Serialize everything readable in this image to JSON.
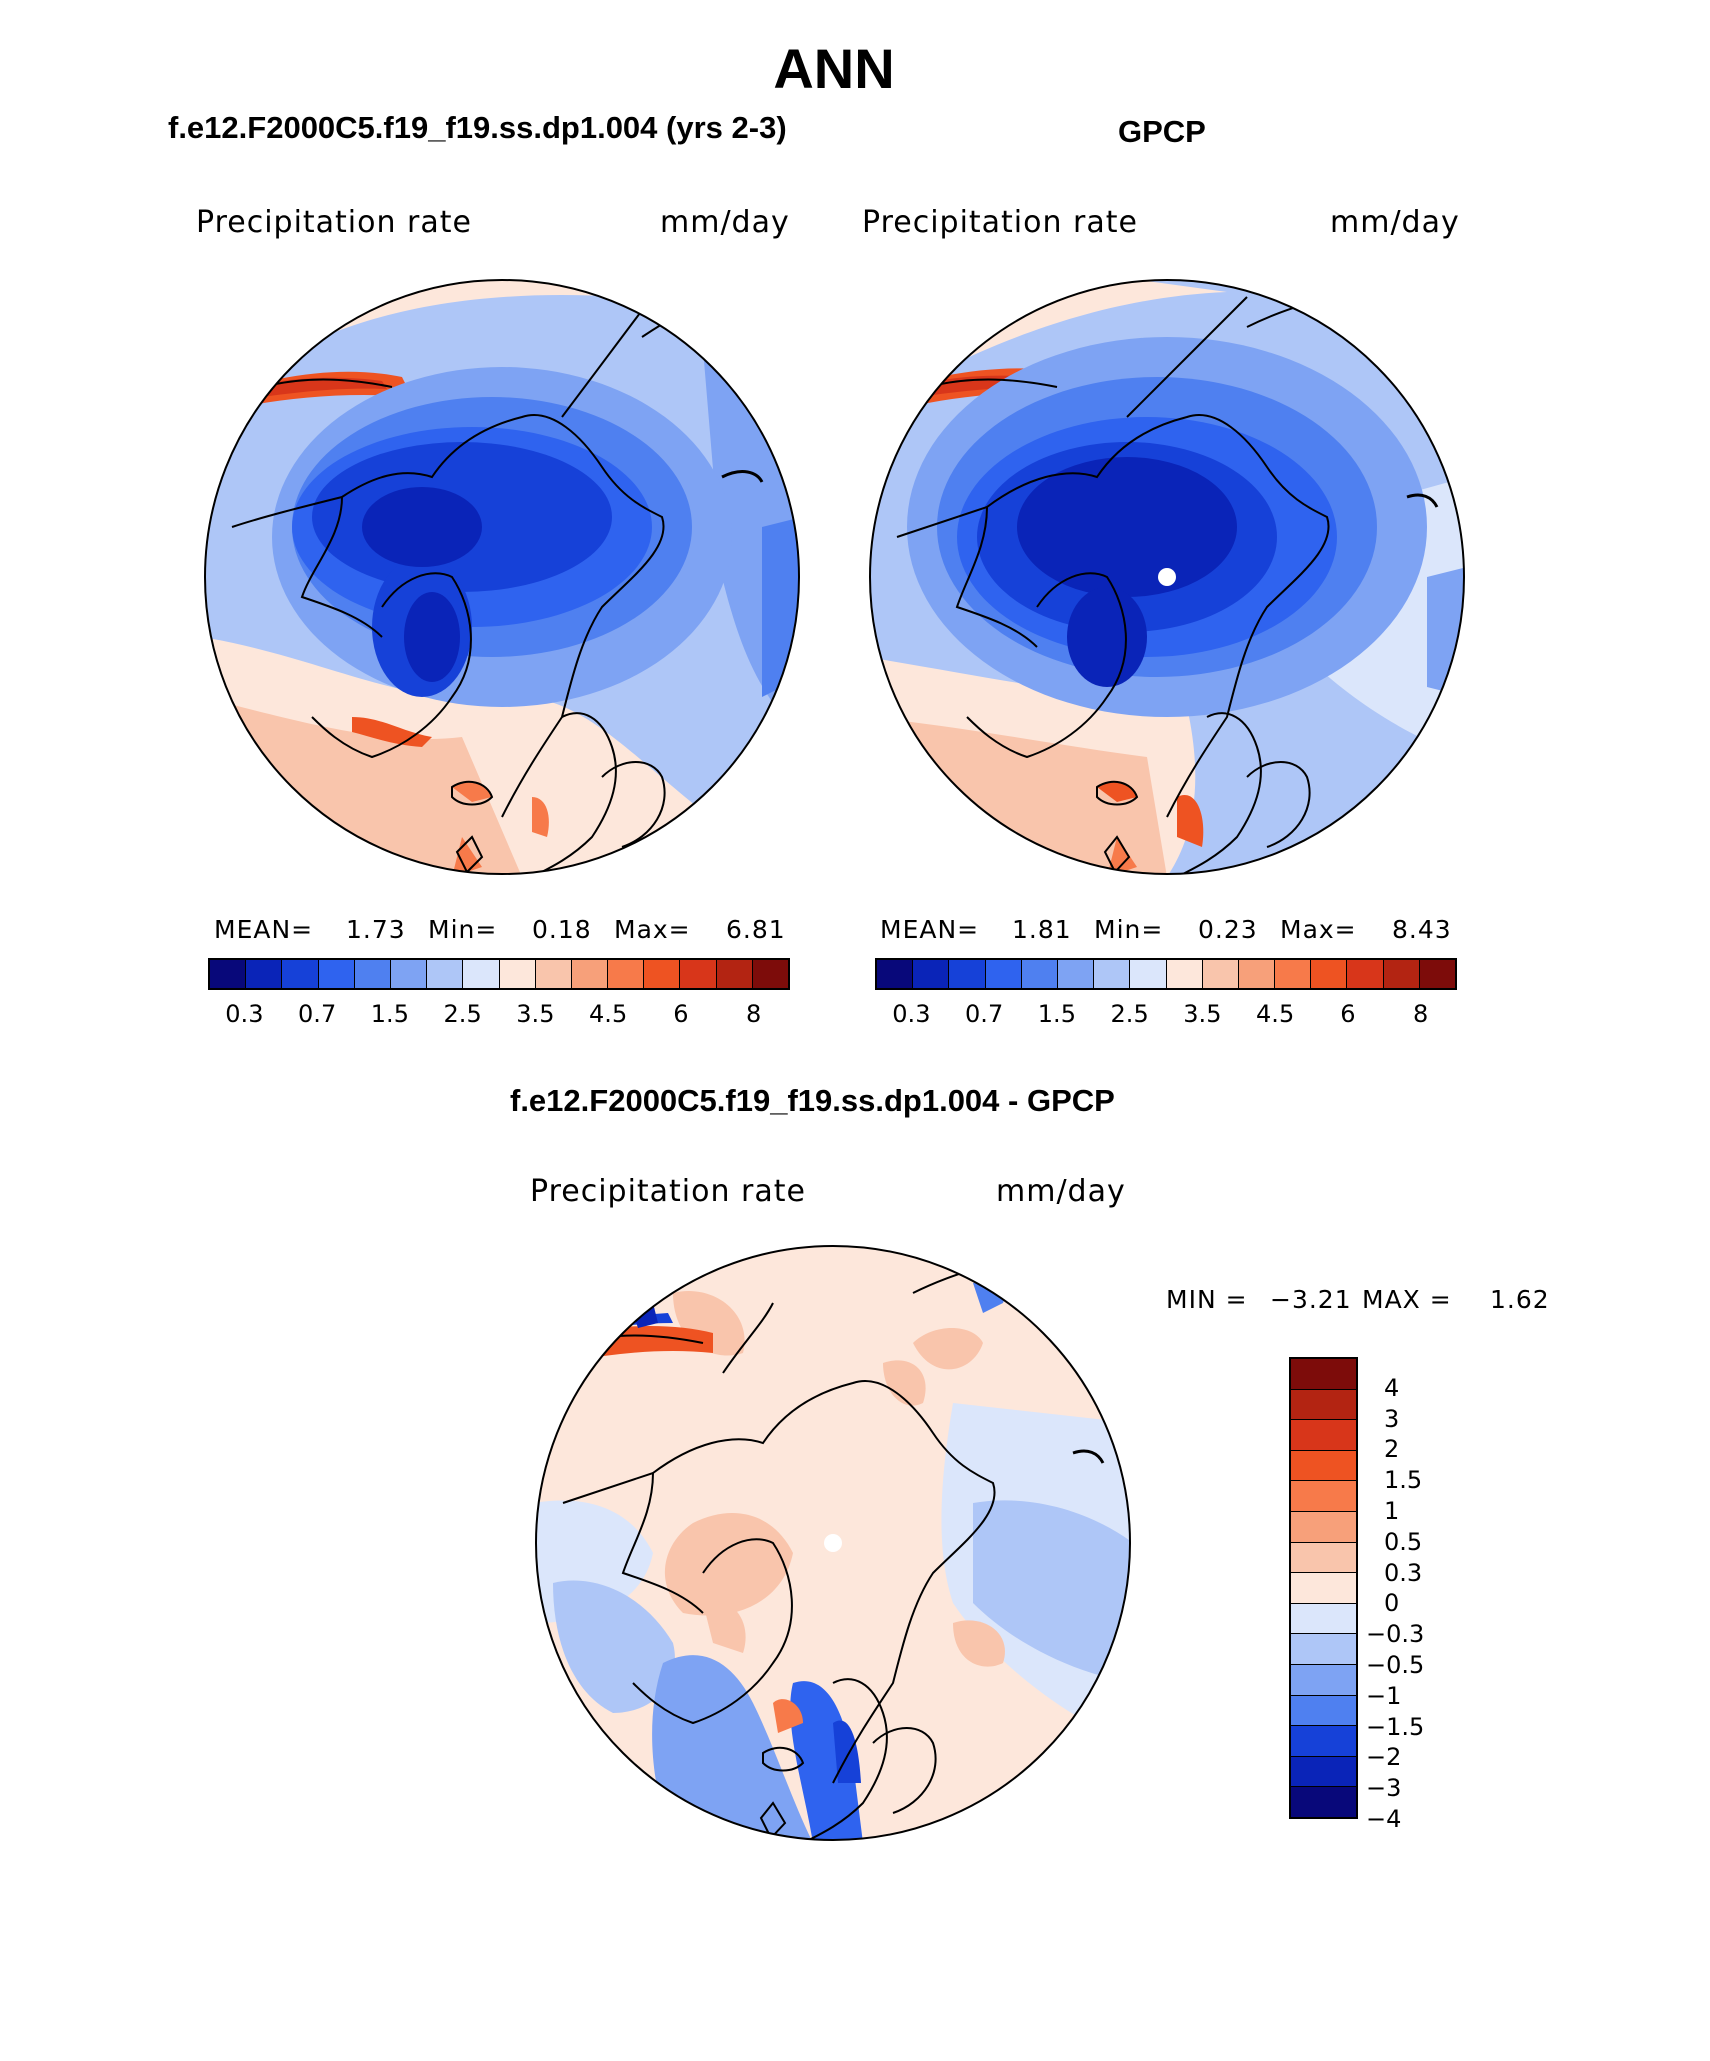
{
  "figure": {
    "title": "ANN"
  },
  "panels": {
    "model": {
      "title": "f.e12.F2000C5.f19_f19.ss.dp1.004 (yrs 2-3)",
      "variable": "Precipitation rate",
      "units": "mm/day",
      "stats": {
        "mean_label": "MEAN=",
        "mean": "1.73",
        "min_label": "Min=",
        "min": "0.18",
        "max_label": "Max=",
        "max": "6.81"
      }
    },
    "obs": {
      "title": "GPCP",
      "variable": "Precipitation rate",
      "units": "mm/day",
      "stats": {
        "mean_label": "MEAN=",
        "mean": "1.81",
        "min_label": "Min=",
        "min": "0.23",
        "max_label": "Max=",
        "max": "8.43"
      }
    },
    "diff": {
      "title": "f.e12.F2000C5.f19_f19.ss.dp1.004 - GPCP",
      "variable": "Precipitation rate",
      "units": "mm/day",
      "min_label": "MIN =",
      "min": "−3.21",
      "max_label": "MAX =",
      "max": "1.62"
    }
  },
  "colorbars": {
    "abs": {
      "colors": [
        "#08087a",
        "#0a24b8",
        "#1641d8",
        "#2f63ef",
        "#4f80f0",
        "#7ea3f3",
        "#aec6f7",
        "#dbe6fb",
        "#fde7db",
        "#f9c5ac",
        "#f7a07a",
        "#f77a4a",
        "#ee5322",
        "#d8361a",
        "#b32412",
        "#7d0c0a"
      ],
      "ticks": [
        "0.3",
        "0.7",
        "1.5",
        "2.5",
        "3.5",
        "4.5",
        "6",
        "8"
      ]
    },
    "diff": {
      "colors_top_to_bottom": [
        "#7d0c0a",
        "#b32412",
        "#d8361a",
        "#ee5322",
        "#f77a4a",
        "#f7a07a",
        "#f9c5ac",
        "#fde7db",
        "#dbe6fb",
        "#aec6f7",
        "#7ea3f3",
        "#4f80f0",
        "#1641d8",
        "#0a24b8",
        "#08087a"
      ],
      "ticks_top_to_bottom": [
        "4",
        "3",
        "2",
        "1.5",
        "1",
        "0.5",
        "0.3",
        "0",
        "−0.3",
        "−0.5",
        "−1",
        "−1.5",
        "−2",
        "−3",
        "−4"
      ]
    }
  },
  "icons": {
    "pole_marker": "white-dot"
  }
}
